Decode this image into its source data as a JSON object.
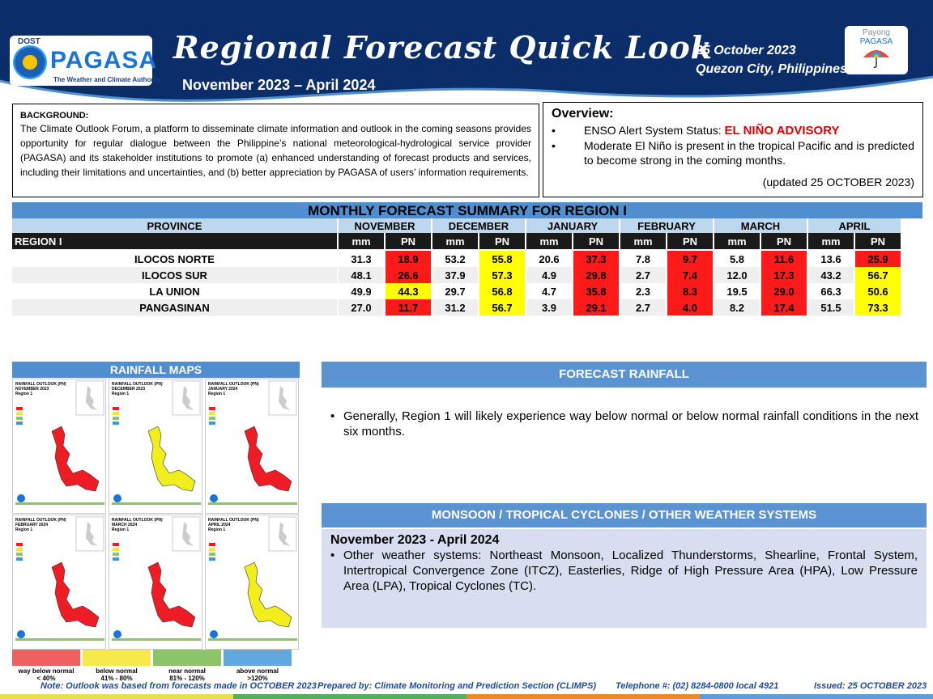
{
  "header": {
    "agency_prefix": "DOST",
    "agency": "PAGASA",
    "agency_tagline": "The Weather and Climate Authority",
    "title": "Regional Forecast Quick Look",
    "period": "November 2023 – April 2024",
    "date": "25 October 2023",
    "place": "Quezon City, Philippines",
    "payong_line1": "Payong",
    "payong_line2": "PAGASA",
    "colors": {
      "header_bg": "#0b2e6b",
      "accent": "#4f8fcf"
    }
  },
  "background": {
    "heading": "BACKGROUND:",
    "text": "The Climate Outlook Forum, a platform to disseminate climate information and outlook in the coming seasons provides opportunity for regular dialogue between the Philippine’s national meteorological-hydrological service provider (PAGASA) and its stakeholder institutions to promote (a) enhanced understanding of forecast products and services, including their limitations and uncertainties, and (b) better appreciation by PAGASA of users’ information requirements."
  },
  "overview": {
    "heading": "Overview:",
    "enso_label": "ENSO Alert System Status: ",
    "enso_status": "EL NIÑO ADVISORY",
    "item2": "Moderate El Niño is present in the tropical Pacific and is predicted to become strong in the coming months.",
    "updated": "(updated 25 OCTOBER 2023)"
  },
  "summary": {
    "title": "MONTHLY FORECAST SUMMARY FOR REGION I",
    "province_header": "PROVINCE",
    "region_label": "REGION I",
    "months": [
      "NOVEMBER",
      "DECEMBER",
      "JANUARY",
      "FEBRUARY",
      "MARCH",
      "APRIL"
    ],
    "mm_label": "mm",
    "pn_label": "PN",
    "rows": [
      {
        "name": "ILOCOS NORTE",
        "values": [
          [
            "31.3",
            "18.9",
            "red"
          ],
          [
            "53.2",
            "55.8",
            "yel"
          ],
          [
            "20.6",
            "37.3",
            "red"
          ],
          [
            "7.8",
            "9.7",
            "red"
          ],
          [
            "5.8",
            "11.6",
            "red"
          ],
          [
            "13.6",
            "25.9",
            "red"
          ]
        ]
      },
      {
        "name": "ILOCOS SUR",
        "values": [
          [
            "48.1",
            "26.6",
            "red"
          ],
          [
            "37.9",
            "57.3",
            "yel"
          ],
          [
            "4.9",
            "29.8",
            "red"
          ],
          [
            "2.7",
            "7.4",
            "red"
          ],
          [
            "12.0",
            "17.3",
            "red"
          ],
          [
            "43.2",
            "56.7",
            "yel"
          ]
        ]
      },
      {
        "name": "LA UNION",
        "values": [
          [
            "49.9",
            "44.3",
            "yel"
          ],
          [
            "29.7",
            "56.8",
            "yel"
          ],
          [
            "4.7",
            "35.8",
            "red"
          ],
          [
            "2.3",
            "8.3",
            "red"
          ],
          [
            "19.5",
            "29.0",
            "red"
          ],
          [
            "66.3",
            "50.6",
            "yel"
          ]
        ]
      },
      {
        "name": "PANGASINAN",
        "values": [
          [
            "27.0",
            "11.7",
            "red"
          ],
          [
            "31.2",
            "56.7",
            "yel"
          ],
          [
            "3.9",
            "29.1",
            "red"
          ],
          [
            "2.7",
            "4.0",
            "red"
          ],
          [
            "8.2",
            "17.4",
            "red"
          ],
          [
            "51.5",
            "73.3",
            "yel"
          ]
        ]
      }
    ]
  },
  "rainfall_maps": {
    "title": "RAINFALL MAPS",
    "maps": [
      {
        "title": "RAINFALL OUTLOOK (PN)",
        "month": "NOVEMBER 2023",
        "region": "Region 1",
        "fill": "#ee1c24"
      },
      {
        "title": "RAINFALL OUTLOOK (PN)",
        "month": "DECEMBER 2023",
        "region": "Region 1",
        "fill": "#f2ee1c"
      },
      {
        "title": "RAINFALL OUTLOOK (PN)",
        "month": "JANUARY 2024",
        "region": "Region 1",
        "fill": "#ee1c24"
      },
      {
        "title": "RAINFALL OUTLOOK (PN)",
        "month": "FEBRUARY 2024",
        "region": "Region 1",
        "fill": "#ee1c24"
      },
      {
        "title": "RAINFALL OUTLOOK (PN)",
        "month": "MARCH 2024",
        "region": "Region 1",
        "fill": "#ee1c24"
      },
      {
        "title": "RAINFALL OUTLOOK (PN)",
        "month": "APRIL 2024",
        "region": "Region 1",
        "fill": "#f2ee1c"
      }
    ],
    "legend": [
      {
        "label": "way below normal",
        "range": "< 40%",
        "color": "#f06060"
      },
      {
        "label": "below normal",
        "range": "41%  -  80%",
        "color": "#f7e94a"
      },
      {
        "label": "near normal",
        "range": "81% - 120%",
        "color": "#8cc46a"
      },
      {
        "label": "above normal",
        "range": ">120%",
        "color": "#5fa9e0"
      }
    ]
  },
  "forecast_rainfall": {
    "title": "FORECAST RAINFALL",
    "text": "Generally, Region 1 will likely experience way below normal or below normal rainfall conditions in the next six months."
  },
  "monsoon": {
    "title": "MONSOON  / TROPICAL CYCLONES / OTHER WEATHER SYSTEMS",
    "period": "November 2023 - April 2024",
    "text": "Other weather systems: Northeast Monsoon, Localized Thunderstorms, Shearline, Frontal System, Intertropical Convergence Zone (ITCZ), Easterlies, Ridge of High Pressure Area (HPA), Low Pressure Area (LPA), Tropical Cyclones (TC)."
  },
  "footer": {
    "note": "Note: Outlook was based from forecasts made in OCTOBER 2023",
    "prepared": "Prepared by: Climate Monitoring and Prediction Section (CLIMPS)",
    "telephone": "Telephone #: (02) 8284-0800 local 4921",
    "issued": "Issued: 25 OCTOBER 2023"
  }
}
